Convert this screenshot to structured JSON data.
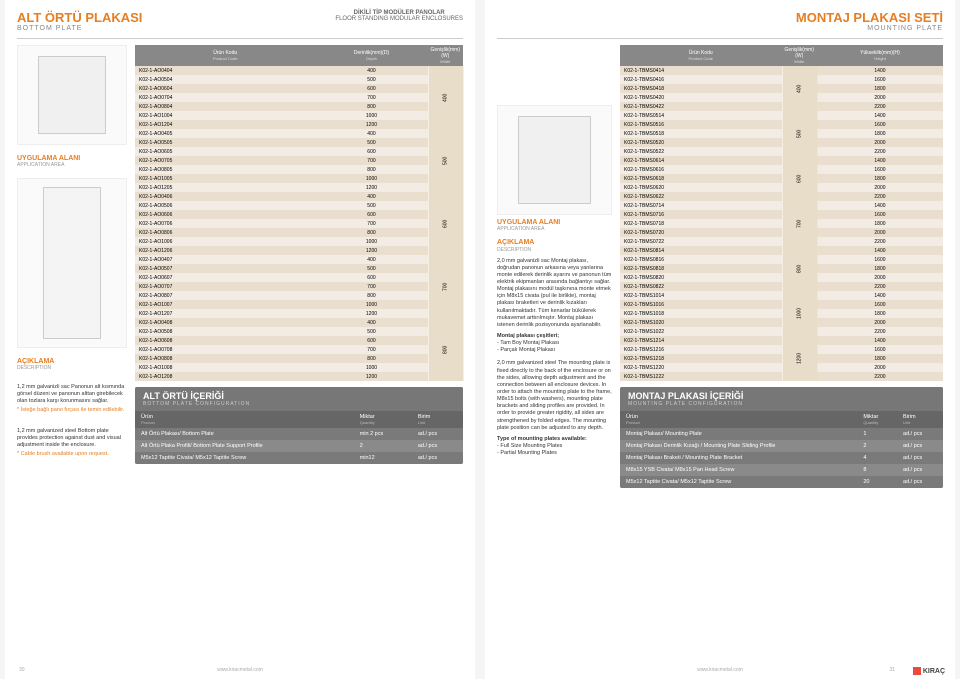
{
  "left": {
    "header": {
      "title_tr": "ALT ÖRTÜ PLAKASI",
      "title_en": "BOTTOM PLATE",
      "center1": "DİKİLİ TİP MODÜLER PANOLAR",
      "center2": "FLOOR STANDING MODULAR ENCLOSURES"
    },
    "col_headers": {
      "c1_tr": "Ürün Kodu",
      "c1_en": "Product Code",
      "c2_tr": "Derinlik(mm)(D)",
      "c2_en": "Depth",
      "c3_tr": "Genişlik(mm)(W)",
      "c3_en": "Width"
    },
    "app_area": {
      "tr": "UYGULAMA ALANI",
      "en": "APPLICATION AREA"
    },
    "desc_h": {
      "tr": "AÇIKLAMA",
      "en": "DESCRIPTION"
    },
    "desc1": "1,2 mm galvanizli sac\nPanonun alt kısmında görsel düzeni ve panonun alttan girebilecek olan tozlara karşı korunmasını sağlar.",
    "desc1_hl": "* İsteğe bağlı pano fırçası ile temin edilebilir.",
    "desc2": "1,2 mm galvanized steel\nBottom plate provides protection against dust and visual adjustment inside the enclosure.",
    "desc2_hl": "* Cable brush available upon request.",
    "groups": [
      {
        "w": "400",
        "rows": [
          [
            "K02-1-AO0404",
            "400"
          ],
          [
            "K02-1-AO0504",
            "500"
          ],
          [
            "K02-1-AO0604",
            "600"
          ],
          [
            "K02-1-AO0704",
            "700"
          ],
          [
            "K02-1-AO0804",
            "800"
          ],
          [
            "K02-1-AO1004",
            "1000"
          ],
          [
            "K02-1-AO1204",
            "1200"
          ]
        ]
      },
      {
        "w": "500",
        "rows": [
          [
            "K02-1-AO0405",
            "400"
          ],
          [
            "K02-1-AO0505",
            "500"
          ],
          [
            "K02-1-AO0605",
            "600"
          ],
          [
            "K02-1-AO0705",
            "700"
          ],
          [
            "K02-1-AO0805",
            "800"
          ],
          [
            "K02-1-AO1005",
            "1000"
          ],
          [
            "K02-1-AO1205",
            "1200"
          ]
        ]
      },
      {
        "w": "600",
        "rows": [
          [
            "K02-1-AO0406",
            "400"
          ],
          [
            "K02-1-AO0506",
            "500"
          ],
          [
            "K02-1-AO0606",
            "600"
          ],
          [
            "K02-1-AO0706",
            "700"
          ],
          [
            "K02-1-AO0806",
            "800"
          ],
          [
            "K02-1-AO1006",
            "1000"
          ],
          [
            "K02-1-AO1206",
            "1200"
          ]
        ]
      },
      {
        "w": "700",
        "rows": [
          [
            "K02-1-AO0407",
            "400"
          ],
          [
            "K02-1-AO0507",
            "500"
          ],
          [
            "K02-1-AO0607",
            "600"
          ],
          [
            "K02-1-AO0707",
            "700"
          ],
          [
            "K02-1-AO0807",
            "800"
          ],
          [
            "K02-1-AO1007",
            "1000"
          ],
          [
            "K02-1-AO1207",
            "1200"
          ]
        ]
      },
      {
        "w": "800",
        "rows": [
          [
            "K02-1-AO0408",
            "400"
          ],
          [
            "K02-1-AO0508",
            "500"
          ],
          [
            "K02-1-AO0608",
            "600"
          ],
          [
            "K02-1-AO0708",
            "700"
          ],
          [
            "K02-1-AO0808",
            "800"
          ],
          [
            "K02-1-AO1008",
            "1000"
          ],
          [
            "K02-1-AO1208",
            "1200"
          ]
        ]
      }
    ],
    "cb": {
      "title_tr": "ALT ÖRTÜ İÇERİĞİ",
      "title_en": "BOTTOM PLATE CONFIGURATION",
      "cols": [
        [
          "Ürün",
          "Product"
        ],
        [
          "Miktar",
          "Quantity"
        ],
        [
          "Birim",
          "Unit"
        ]
      ],
      "rows": [
        [
          "Alt Örtü Plakası/ Bottom Plate",
          "min 2 pcs",
          "ad./ pcs"
        ],
        [
          "Alt Örtü Plaka Profili/ Bottom Plate Support Profile",
          "2",
          "ad./ pcs"
        ],
        [
          "M5x12 Taptite Civata/ M5x12 Taptite Screw",
          "min12",
          "ad./ pcs"
        ]
      ]
    },
    "footer": "www.kiracmetal.com",
    "page": "30"
  },
  "right": {
    "header": {
      "title_tr": "MONTAJ PLAKASI SETİ",
      "title_en": "MOUNTING PLATE"
    },
    "app_area": {
      "tr": "UYGULAMA ALANI",
      "en": "APPLICATION AREA"
    },
    "desc_h": {
      "tr": "AÇIKLAMA",
      "en": "DESCRIPTION"
    },
    "desc_tr": "2,0 mm galvanizli sac\nMontaj plakası, doğrudan panonun arkasına veya yanlarına monte edilerek derinlik ayarını ve panonun tüm elektrik ekipmanları arasında bağlantıyı sağlar. Montaj plakasını modül taşkınına monte etmek için M8x15 civata (pul ile birlikte), montaj plakası braketleri ve derinlik kızakları kullanılmaktadır. Tüm kenarlar bükülerek mukavemet arttırılmıştır. Montaj plakası istenen derinlik pozisyonunda ayarlanabilir.",
    "desc_tr_b": "Montaj plakası çeşitleri;",
    "desc_tr_l1": "- Tam Boy Montaj Plakası",
    "desc_tr_l2": "- Parçalı Montaj Plakası",
    "desc_en": "2,0 mm galvanized steel\nThe mounting plate is fixed directly to the back of the enclosure or on the sides, allowing depth adjustment and the connection between all enclosure devices. In order to attach the mounting plate to the frame, M8x15 bolts (with washers), mounting plate brackets and sliding profiles are provided. In order to provide greater rigidity, all sides are strengthened by folded edges. The mounting plate position can be adjusted to any depth.",
    "desc_en_b": "Type of mounting plates available:",
    "desc_en_l1": "- Full Size Mounting Plates",
    "desc_en_l2": "- Partial Mounting Plates",
    "col_headers": {
      "c1_tr": "Ürün Kodu",
      "c1_en": "Product Code",
      "c2_tr": "Genişlik(mm)(W)",
      "c2_en": "Width",
      "c3_tr": "Yükseklik(mm)(H)",
      "c3_en": "Height"
    },
    "groups": [
      {
        "w": "400",
        "rows": [
          [
            "K02-1-TBMS0414",
            "1400"
          ],
          [
            "K02-1-TBMS0416",
            "1600"
          ],
          [
            "K02-1-TBMS0418",
            "1800"
          ],
          [
            "K02-1-TBMS0420",
            "2000"
          ],
          [
            "K02-1-TBMS0422",
            "2200"
          ]
        ]
      },
      {
        "w": "500",
        "rows": [
          [
            "K02-1-TBMS0514",
            "1400"
          ],
          [
            "K02-1-TBMS0516",
            "1600"
          ],
          [
            "K02-1-TBMS0518",
            "1800"
          ],
          [
            "K02-1-TBMS0520",
            "2000"
          ],
          [
            "K02-1-TBMS0522",
            "2200"
          ]
        ]
      },
      {
        "w": "600",
        "rows": [
          [
            "K02-1-TBMS0614",
            "1400"
          ],
          [
            "K02-1-TBMS0616",
            "1600"
          ],
          [
            "K02-1-TBMS0618",
            "1800"
          ],
          [
            "K02-1-TBMS0620",
            "2000"
          ],
          [
            "K02-1-TBMS0622",
            "2200"
          ]
        ]
      },
      {
        "w": "700",
        "rows": [
          [
            "K02-1-TBMS0714",
            "1400"
          ],
          [
            "K02-1-TBMS0716",
            "1600"
          ],
          [
            "K02-1-TBMS0718",
            "1800"
          ],
          [
            "K02-1-TBMS0720",
            "2000"
          ],
          [
            "K02-1-TBMS0722",
            "2200"
          ]
        ]
      },
      {
        "w": "800",
        "rows": [
          [
            "K02-1-TBMS0814",
            "1400"
          ],
          [
            "K02-1-TBMS0816",
            "1600"
          ],
          [
            "K02-1-TBMS0818",
            "1800"
          ],
          [
            "K02-1-TBMS0820",
            "2000"
          ],
          [
            "K02-1-TBMS0822",
            "2200"
          ]
        ]
      },
      {
        "w": "1000",
        "rows": [
          [
            "K02-1-TBMS1014",
            "1400"
          ],
          [
            "K02-1-TBMS1016",
            "1600"
          ],
          [
            "K02-1-TBMS1018",
            "1800"
          ],
          [
            "K02-1-TBMS1020",
            "2000"
          ],
          [
            "K02-1-TBMS1022",
            "2200"
          ]
        ]
      },
      {
        "w": "1200",
        "rows": [
          [
            "K02-1-TBMS1214",
            "1400"
          ],
          [
            "K02-1-TBMS1216",
            "1600"
          ],
          [
            "K02-1-TBMS1218",
            "1800"
          ],
          [
            "K02-1-TBMS1220",
            "2000"
          ],
          [
            "K02-1-TBMS1222",
            "2200"
          ]
        ]
      }
    ],
    "cb": {
      "title_tr": "MONTAJ PLAKASI İÇERİĞİ",
      "title_en": "MOUNTING PLATE CONFIGURATION",
      "cols": [
        [
          "Ürün",
          "Product"
        ],
        [
          "Miktar",
          "Quantity"
        ],
        [
          "Birim",
          "Unit"
        ]
      ],
      "rows": [
        [
          "Montaj Plakası/ Mounting Plate",
          "1",
          "ad./ pcs"
        ],
        [
          "Montaj Plakası Derinlik Kızağı / Mounting Plate Sliding Profile",
          "2",
          "ad./ pcs"
        ],
        [
          "Montaj Plakası Braketi / Mounting Plate Bracket",
          "4",
          "ad./ pcs"
        ],
        [
          "M8x15 YSB Civata/ M8x15 Pan Head Screw",
          "8",
          "ad./ pcs"
        ],
        [
          "M5x12 Taptite Civata/ M5x12 Taptite Screw",
          "20",
          "ad./ pcs"
        ]
      ]
    },
    "footer": "www.kiracmetal.com",
    "page": "31",
    "logo": "KIRAÇ"
  }
}
